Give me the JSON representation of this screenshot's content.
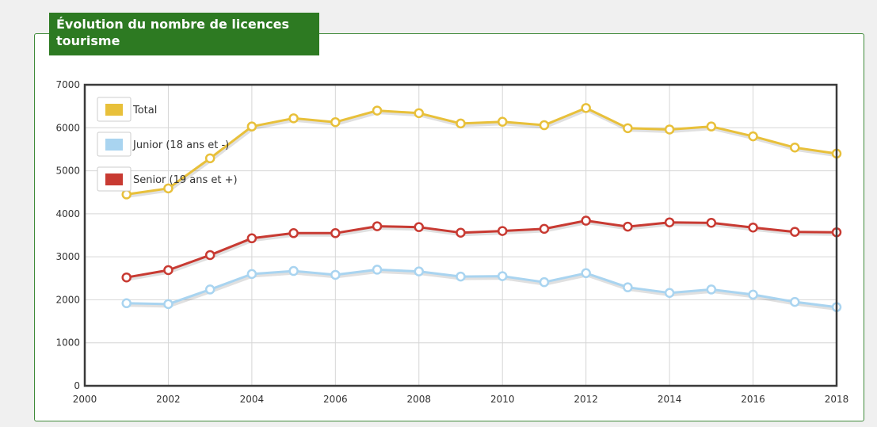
{
  "panel": {
    "title": "Évolution du nombre de licences tourisme"
  },
  "chart_data": {
    "type": "line",
    "title": "Évolution du nombre de licences tourisme",
    "xlabel": "",
    "ylabel": "",
    "xlim": [
      2000,
      2018
    ],
    "ylim": [
      0,
      7000
    ],
    "x_ticks": [
      2000,
      2002,
      2004,
      2006,
      2008,
      2010,
      2012,
      2014,
      2016,
      2018
    ],
    "y_ticks": [
      0,
      1000,
      2000,
      3000,
      4000,
      5000,
      6000,
      7000
    ],
    "grid": true,
    "legend_position": "top-left",
    "x": [
      2001,
      2002,
      2003,
      2004,
      2005,
      2006,
      2007,
      2008,
      2009,
      2010,
      2011,
      2012,
      2013,
      2014,
      2015,
      2016,
      2017,
      2018
    ],
    "series": [
      {
        "name": "Total",
        "color": "#e8c03a",
        "values": [
          4450,
          4590,
          5290,
          6030,
          6220,
          6130,
          6400,
          6340,
          6100,
          6140,
          6060,
          6460,
          5990,
          5960,
          6030,
          5800,
          5540,
          5400
        ]
      },
      {
        "name": "Junior (18 ans et -)",
        "color": "#a9d4f0",
        "values": [
          1920,
          1900,
          2240,
          2600,
          2670,
          2580,
          2700,
          2660,
          2540,
          2550,
          2410,
          2620,
          2290,
          2160,
          2240,
          2120,
          1950,
          1830
        ]
      },
      {
        "name": "Senior (19 ans et +)",
        "color": "#c83a32",
        "values": [
          2520,
          2690,
          3040,
          3430,
          3550,
          3550,
          3710,
          3690,
          3560,
          3600,
          3650,
          3840,
          3700,
          3800,
          3790,
          3680,
          3580,
          3570
        ]
      }
    ]
  }
}
